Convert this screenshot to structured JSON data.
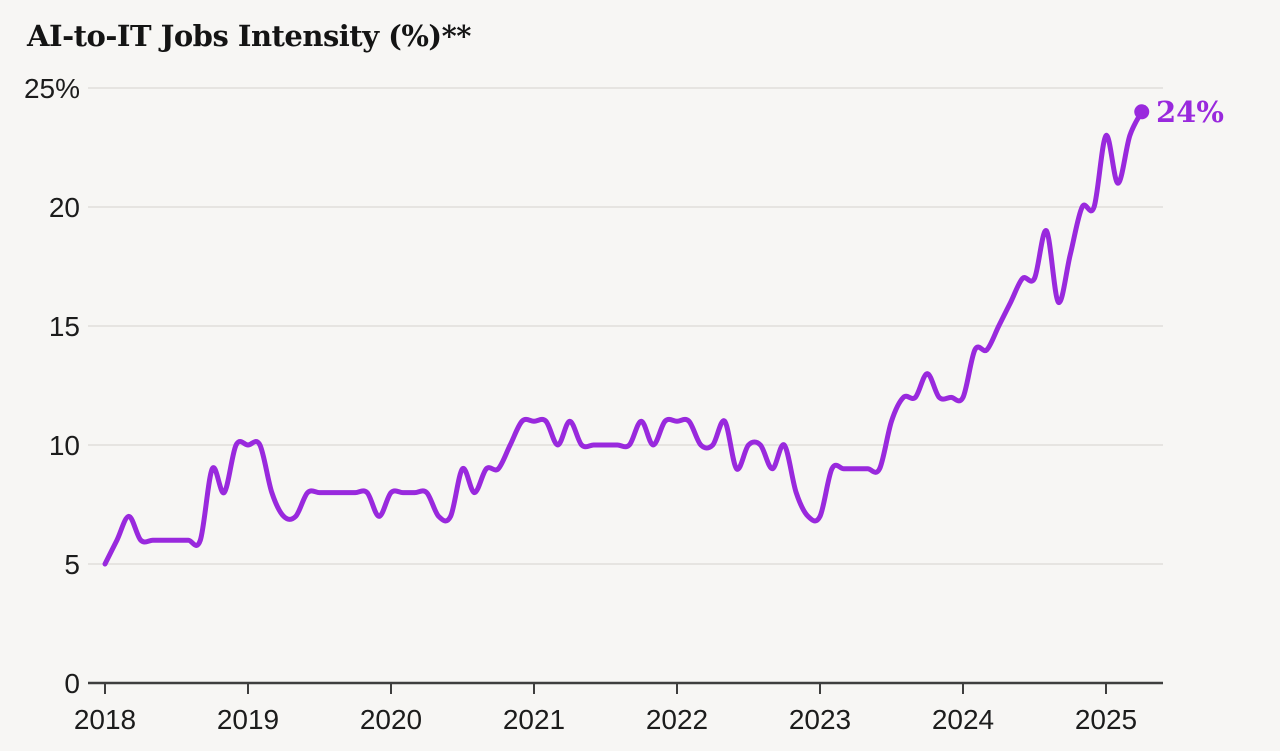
{
  "chart": {
    "title": "AI-to-IT Jobs Intensity (%)**",
    "end_label": "24%",
    "line_color": "#9929dd",
    "title_color": "#141414",
    "axis_color": "#3e3e3e",
    "grid_color": "#e6e4e1",
    "label_color": "#1c1c1c",
    "background_color": "#f7f6f4"
  },
  "chart_data": {
    "type": "line",
    "title": "AI-to-IT Jobs Intensity (%)**",
    "x_unit": "month",
    "x_start": "2018-01",
    "x_end": "2025-04",
    "x_tick_labels": [
      "2018",
      "2019",
      "2020",
      "2021",
      "2022",
      "2023",
      "2024",
      "2025"
    ],
    "y_tick_values": [
      0,
      5,
      10,
      15,
      20,
      25
    ],
    "y_tick_labels": [
      "0",
      "5",
      "10",
      "15",
      "20",
      "25%"
    ],
    "ylim": [
      0,
      25
    ],
    "grid": "horizontal",
    "legend": "none",
    "end_annotation": "24%",
    "end_dot": true,
    "series": [
      {
        "name": "AI-to-IT Jobs Intensity (%)",
        "values_by_year": {
          "2018": [
            5,
            6,
            7,
            6,
            6,
            6,
            6,
            6,
            6,
            9,
            8,
            10
          ],
          "2019": [
            10,
            10,
            8,
            7,
            7,
            8,
            8,
            8,
            8,
            8,
            8,
            7
          ],
          "2020": [
            8,
            8,
            8,
            8,
            7,
            7,
            9,
            8,
            9,
            9,
            10,
            11
          ],
          "2021": [
            11,
            11,
            10,
            11,
            10,
            10,
            10,
            10,
            10,
            11,
            10,
            11
          ],
          "2022": [
            11,
            11,
            10,
            10,
            11,
            9,
            10,
            10,
            9,
            10,
            8,
            7
          ],
          "2023": [
            7,
            9,
            9,
            9,
            9,
            9,
            11,
            12,
            12,
            13,
            12,
            12
          ],
          "2024": [
            12,
            14,
            14,
            15,
            16,
            17,
            17,
            19,
            16,
            18,
            20,
            20
          ],
          "2025": [
            23,
            21,
            23,
            24
          ]
        }
      }
    ]
  }
}
